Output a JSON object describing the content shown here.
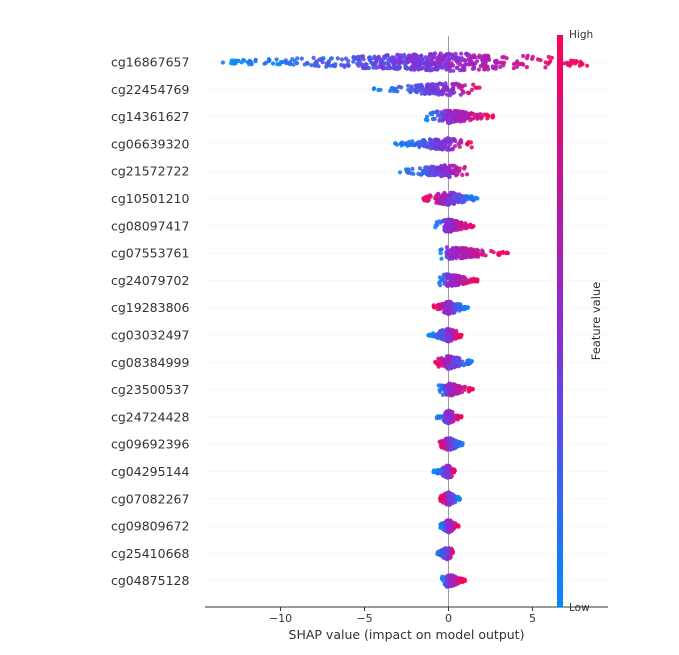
{
  "chart_data": {
    "type": "scatter",
    "subtype": "shap-beeswarm",
    "title": "",
    "xlabel": "SHAP value (impact on model output)",
    "ylabel": "",
    "xlim": [
      -14.5,
      9.5
    ],
    "xticks": [
      -10,
      -5,
      0,
      5
    ],
    "xtick_labels": [
      "−10",
      "−5",
      "0",
      "5"
    ],
    "zero_line": true,
    "features": [
      {
        "name": "cg16867657",
        "min": -13.5,
        "max": 8.5,
        "low_side": "negative"
      },
      {
        "name": "cg22454769",
        "min": -4.5,
        "max": 2.0,
        "low_side": "negative"
      },
      {
        "name": "cg14361627",
        "min": -1.5,
        "max": 2.8,
        "low_side": "negative"
      },
      {
        "name": "cg06639320",
        "min": -3.2,
        "max": 1.5,
        "low_side": "negative"
      },
      {
        "name": "cg21572722",
        "min": -3.1,
        "max": 1.3,
        "low_side": "negative"
      },
      {
        "name": "cg10501210",
        "min": -1.5,
        "max": 1.8,
        "low_side": "positive"
      },
      {
        "name": "cg08097417",
        "min": -0.8,
        "max": 1.5,
        "low_side": "negative"
      },
      {
        "name": "cg07553761",
        "min": -0.5,
        "max": 3.6,
        "low_side": "negative"
      },
      {
        "name": "cg24079702",
        "min": -0.6,
        "max": 1.8,
        "low_side": "negative"
      },
      {
        "name": "cg19283806",
        "min": -0.9,
        "max": 1.2,
        "low_side": "positive"
      },
      {
        "name": "cg03032497",
        "min": -1.2,
        "max": 0.8,
        "low_side": "negative"
      },
      {
        "name": "cg08384999",
        "min": -0.8,
        "max": 1.5,
        "low_side": "positive"
      },
      {
        "name": "cg23500537",
        "min": -0.6,
        "max": 1.5,
        "low_side": "negative"
      },
      {
        "name": "cg24724428",
        "min": -0.7,
        "max": 0.8,
        "low_side": "negative"
      },
      {
        "name": "cg09692396",
        "min": -0.6,
        "max": 0.9,
        "low_side": "positive"
      },
      {
        "name": "cg04295144",
        "min": -0.9,
        "max": 0.4,
        "low_side": "negative"
      },
      {
        "name": "cg07082267",
        "min": -0.5,
        "max": 0.7,
        "low_side": "positive"
      },
      {
        "name": "cg09809672",
        "min": -0.5,
        "max": 0.6,
        "low_side": "negative"
      },
      {
        "name": "cg25410668",
        "min": -0.7,
        "max": 0.3,
        "low_side": "negative"
      },
      {
        "name": "cg04875128",
        "min": -0.4,
        "max": 1.0,
        "low_side": "negative"
      }
    ],
    "colorbar": {
      "label": "Feature value",
      "high_label": "High",
      "low_label": "Low",
      "high_color": "#ff0052",
      "mid_color": "#8a2bd6",
      "low_color": "#008bfb"
    }
  }
}
